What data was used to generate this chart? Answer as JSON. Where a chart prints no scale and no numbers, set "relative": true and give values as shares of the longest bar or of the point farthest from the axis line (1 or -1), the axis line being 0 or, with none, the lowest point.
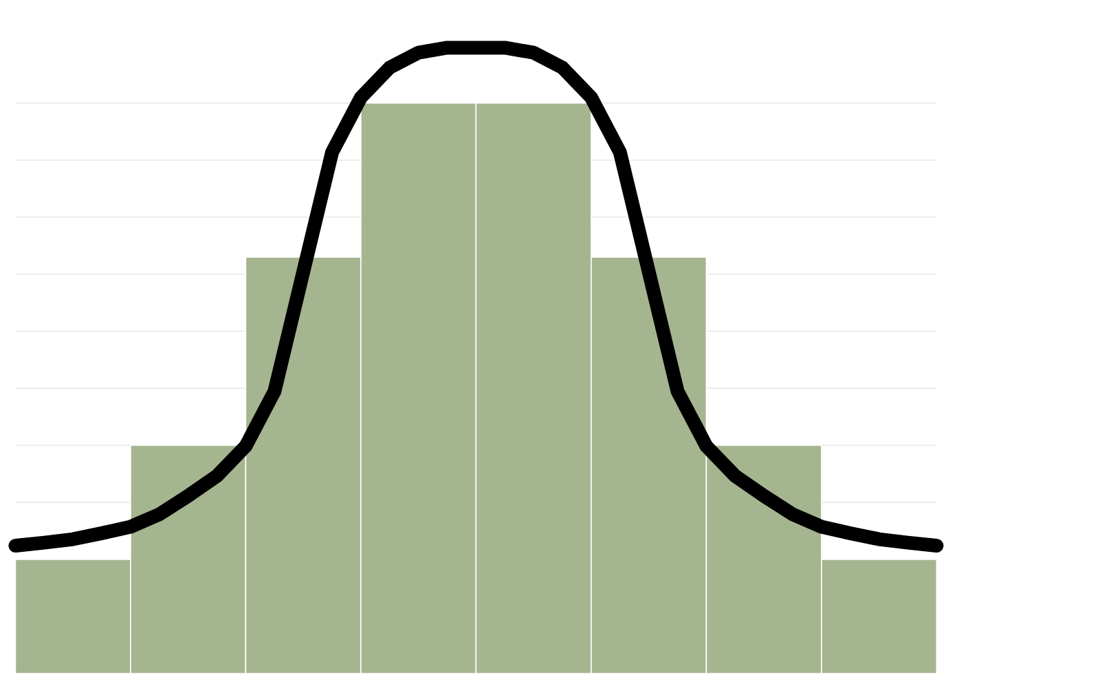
{
  "chart_data": [
    {
      "type": "bar",
      "relative": true,
      "grid": "y",
      "categories": [
        null,
        null,
        null,
        null,
        null,
        null,
        null,
        null
      ],
      "color": "#a5b590",
      "values": [
        0.2,
        0.4,
        0.73,
        1,
        1,
        0.73,
        0.4,
        0.2
      ]
    },
    {
      "type": "line",
      "relative": true,
      "color": "#000000",
      "categories": [
        null,
        null,
        null,
        null,
        null,
        null,
        null,
        null,
        null,
        null,
        null,
        null,
        null,
        null,
        null,
        null,
        null,
        null,
        null,
        null,
        null,
        null,
        null,
        null,
        null,
        null,
        null,
        null,
        null,
        null,
        null,
        null,
        null
      ],
      "values": [
        0,
        0.006,
        0.013,
        0.025,
        0.038,
        0.063,
        0.1,
        0.14,
        0.2,
        0.31,
        0.55,
        0.79,
        0.9,
        0.96,
        0.99,
        1,
        1,
        1,
        0.99,
        0.96,
        0.9,
        0.79,
        0.55,
        0.31,
        0.2,
        0.14,
        0.1,
        0.063,
        0.038,
        0.025,
        0.013,
        0.006,
        0
      ]
    }
  ]
}
